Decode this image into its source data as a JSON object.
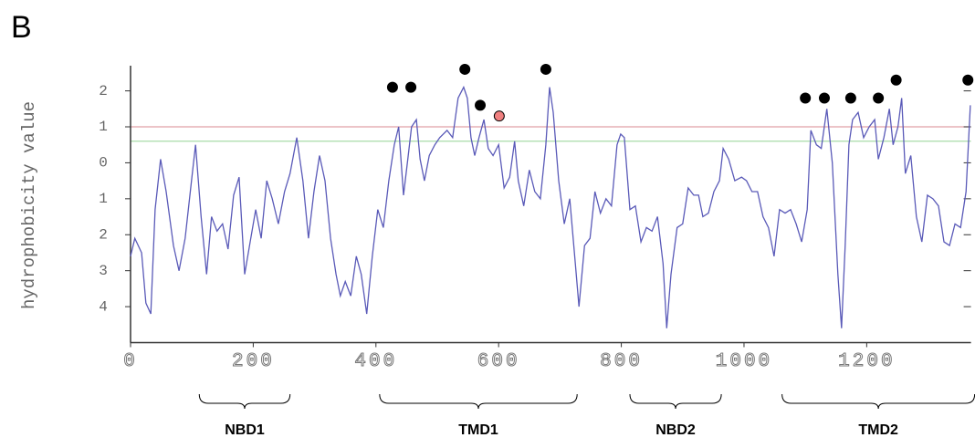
{
  "chart_data": {
    "type": "line",
    "panel_label": "B",
    "y_label": "hydrophobicity value",
    "xlim": [
      0,
      1370
    ],
    "ylim": [
      -5,
      2.7
    ],
    "xticks": [
      0,
      200,
      400,
      600,
      800,
      1000,
      1200
    ],
    "yticks": [
      2,
      1,
      0,
      {
        "value": -1,
        "label": "1"
      },
      {
        "value": -2,
        "label": "2"
      },
      {
        "value": -3,
        "label": "3"
      },
      {
        "value": -4,
        "label": "4"
      }
    ],
    "series": [
      {
        "color": "#5a5ab8",
        "x": [
          0,
          7,
          18,
          25,
          33,
          40,
          49,
          58,
          70,
          79,
          89,
          100,
          106,
          115,
          124,
          132,
          141,
          150,
          159,
          168,
          177,
          186,
          196,
          204,
          213,
          222,
          231,
          241,
          251,
          260,
          271,
          281,
          290,
          299,
          308,
          317,
          326,
          335,
          342,
          350,
          359,
          368,
          376,
          385,
          394,
          403,
          412,
          421,
          430,
          437,
          445,
          452,
          458,
          466,
          472,
          479,
          487,
          496,
          504,
          516,
          525,
          534,
          543,
          549,
          555,
          561,
          568,
          576,
          583,
          591,
          600,
          609,
          618,
          626,
          632,
          641,
          650,
          659,
          668,
          677,
          683,
          689,
          698,
          707,
          716,
          725,
          731,
          740,
          749,
          757,
          766,
          775,
          784,
          793,
          799,
          805,
          814,
          823,
          832,
          841,
          850,
          859,
          868,
          874,
          881,
          891,
          900,
          909,
          918,
          926,
          933,
          942,
          951,
          960,
          966,
          975,
          985,
          996,
          1004,
          1013,
          1022,
          1031,
          1040,
          1049,
          1058,
          1067,
          1076,
          1085,
          1094,
          1103,
          1109,
          1118,
          1126,
          1135,
          1144,
          1153,
          1159,
          1165,
          1171,
          1177,
          1186,
          1195,
          1204,
          1213,
          1219,
          1228,
          1237,
          1243,
          1251,
          1257,
          1263,
          1272,
          1281,
          1290,
          1299,
          1308,
          1317,
          1326,
          1335,
          1344,
          1353,
          1362,
          1369
        ],
        "values": [
          -2.6,
          -2.1,
          -2.5,
          -3.9,
          -4.2,
          -1.3,
          0.1,
          -0.8,
          -2.3,
          -3.0,
          -2.1,
          -0.4,
          0.5,
          -1.5,
          -3.1,
          -1.5,
          -1.9,
          -1.7,
          -2.4,
          -0.9,
          -0.4,
          -3.1,
          -2.1,
          -1.3,
          -2.1,
          -0.5,
          -1.0,
          -1.7,
          -0.8,
          -0.3,
          0.7,
          -0.5,
          -2.1,
          -0.8,
          0.2,
          -0.5,
          -2.1,
          -3.1,
          -3.7,
          -3.3,
          -3.7,
          -2.6,
          -3.1,
          -4.2,
          -2.6,
          -1.3,
          -1.8,
          -0.5,
          0.5,
          1.0,
          -0.9,
          0.1,
          1.0,
          1.2,
          0.1,
          -0.5,
          0.2,
          0.5,
          0.7,
          0.9,
          0.7,
          1.8,
          2.1,
          1.8,
          0.7,
          0.2,
          0.7,
          1.2,
          0.4,
          0.2,
          0.5,
          -0.7,
          -0.4,
          0.6,
          -0.5,
          -1.2,
          -0.2,
          -0.8,
          -1.0,
          0.5,
          2.1,
          1.4,
          -0.5,
          -1.7,
          -1.0,
          -2.8,
          -4.0,
          -2.3,
          -2.1,
          -0.8,
          -1.4,
          -1.0,
          -1.2,
          0.5,
          0.8,
          0.7,
          -1.3,
          -1.2,
          -2.2,
          -1.8,
          -1.9,
          -1.5,
          -2.8,
          -4.6,
          -3.1,
          -1.8,
          -1.7,
          -0.7,
          -0.9,
          -0.9,
          -1.5,
          -1.4,
          -0.8,
          -0.5,
          0.4,
          0.1,
          -0.5,
          -0.4,
          -0.5,
          -0.8,
          -0.8,
          -1.5,
          -1.8,
          -2.6,
          -1.3,
          -1.4,
          -1.3,
          -1.7,
          -2.2,
          -1.3,
          0.9,
          0.5,
          0.4,
          1.5,
          0.0,
          -3.1,
          -4.6,
          -2.3,
          0.5,
          1.2,
          1.4,
          0.7,
          1.0,
          1.2,
          0.1,
          0.7,
          1.5,
          0.5,
          1.0,
          1.8,
          -0.3,
          0.2,
          -1.5,
          -2.2,
          -0.9,
          -1.0,
          -1.2,
          -2.2,
          -2.3,
          -1.7,
          -1.8,
          -0.8,
          1.6
        ]
      }
    ],
    "reference_lines": [
      {
        "value": 1.0,
        "color": "#e0a0a8"
      },
      {
        "value": 0.6,
        "color": "#a8dca8"
      }
    ],
    "markers": [
      {
        "color": "#000000",
        "x": [
          427,
          457,
          545,
          570,
          677,
          1100,
          1131,
          1174,
          1219,
          1248,
          1365
        ],
        "y": [
          2.1,
          2.1,
          2.6,
          1.6,
          2.6,
          1.8,
          1.8,
          1.8,
          1.8,
          2.3,
          2.3
        ]
      },
      {
        "color": "#f08080",
        "x": [
          601
        ],
        "y": [
          1.3
        ]
      }
    ],
    "domains": [
      {
        "label": "NBD1",
        "start": 112,
        "end": 260
      },
      {
        "label": "TMD1",
        "start": 406,
        "end": 728
      },
      {
        "label": "NBD2",
        "start": 814,
        "end": 963
      },
      {
        "label": "TMD2",
        "start": 1062,
        "end": 1376
      }
    ]
  }
}
